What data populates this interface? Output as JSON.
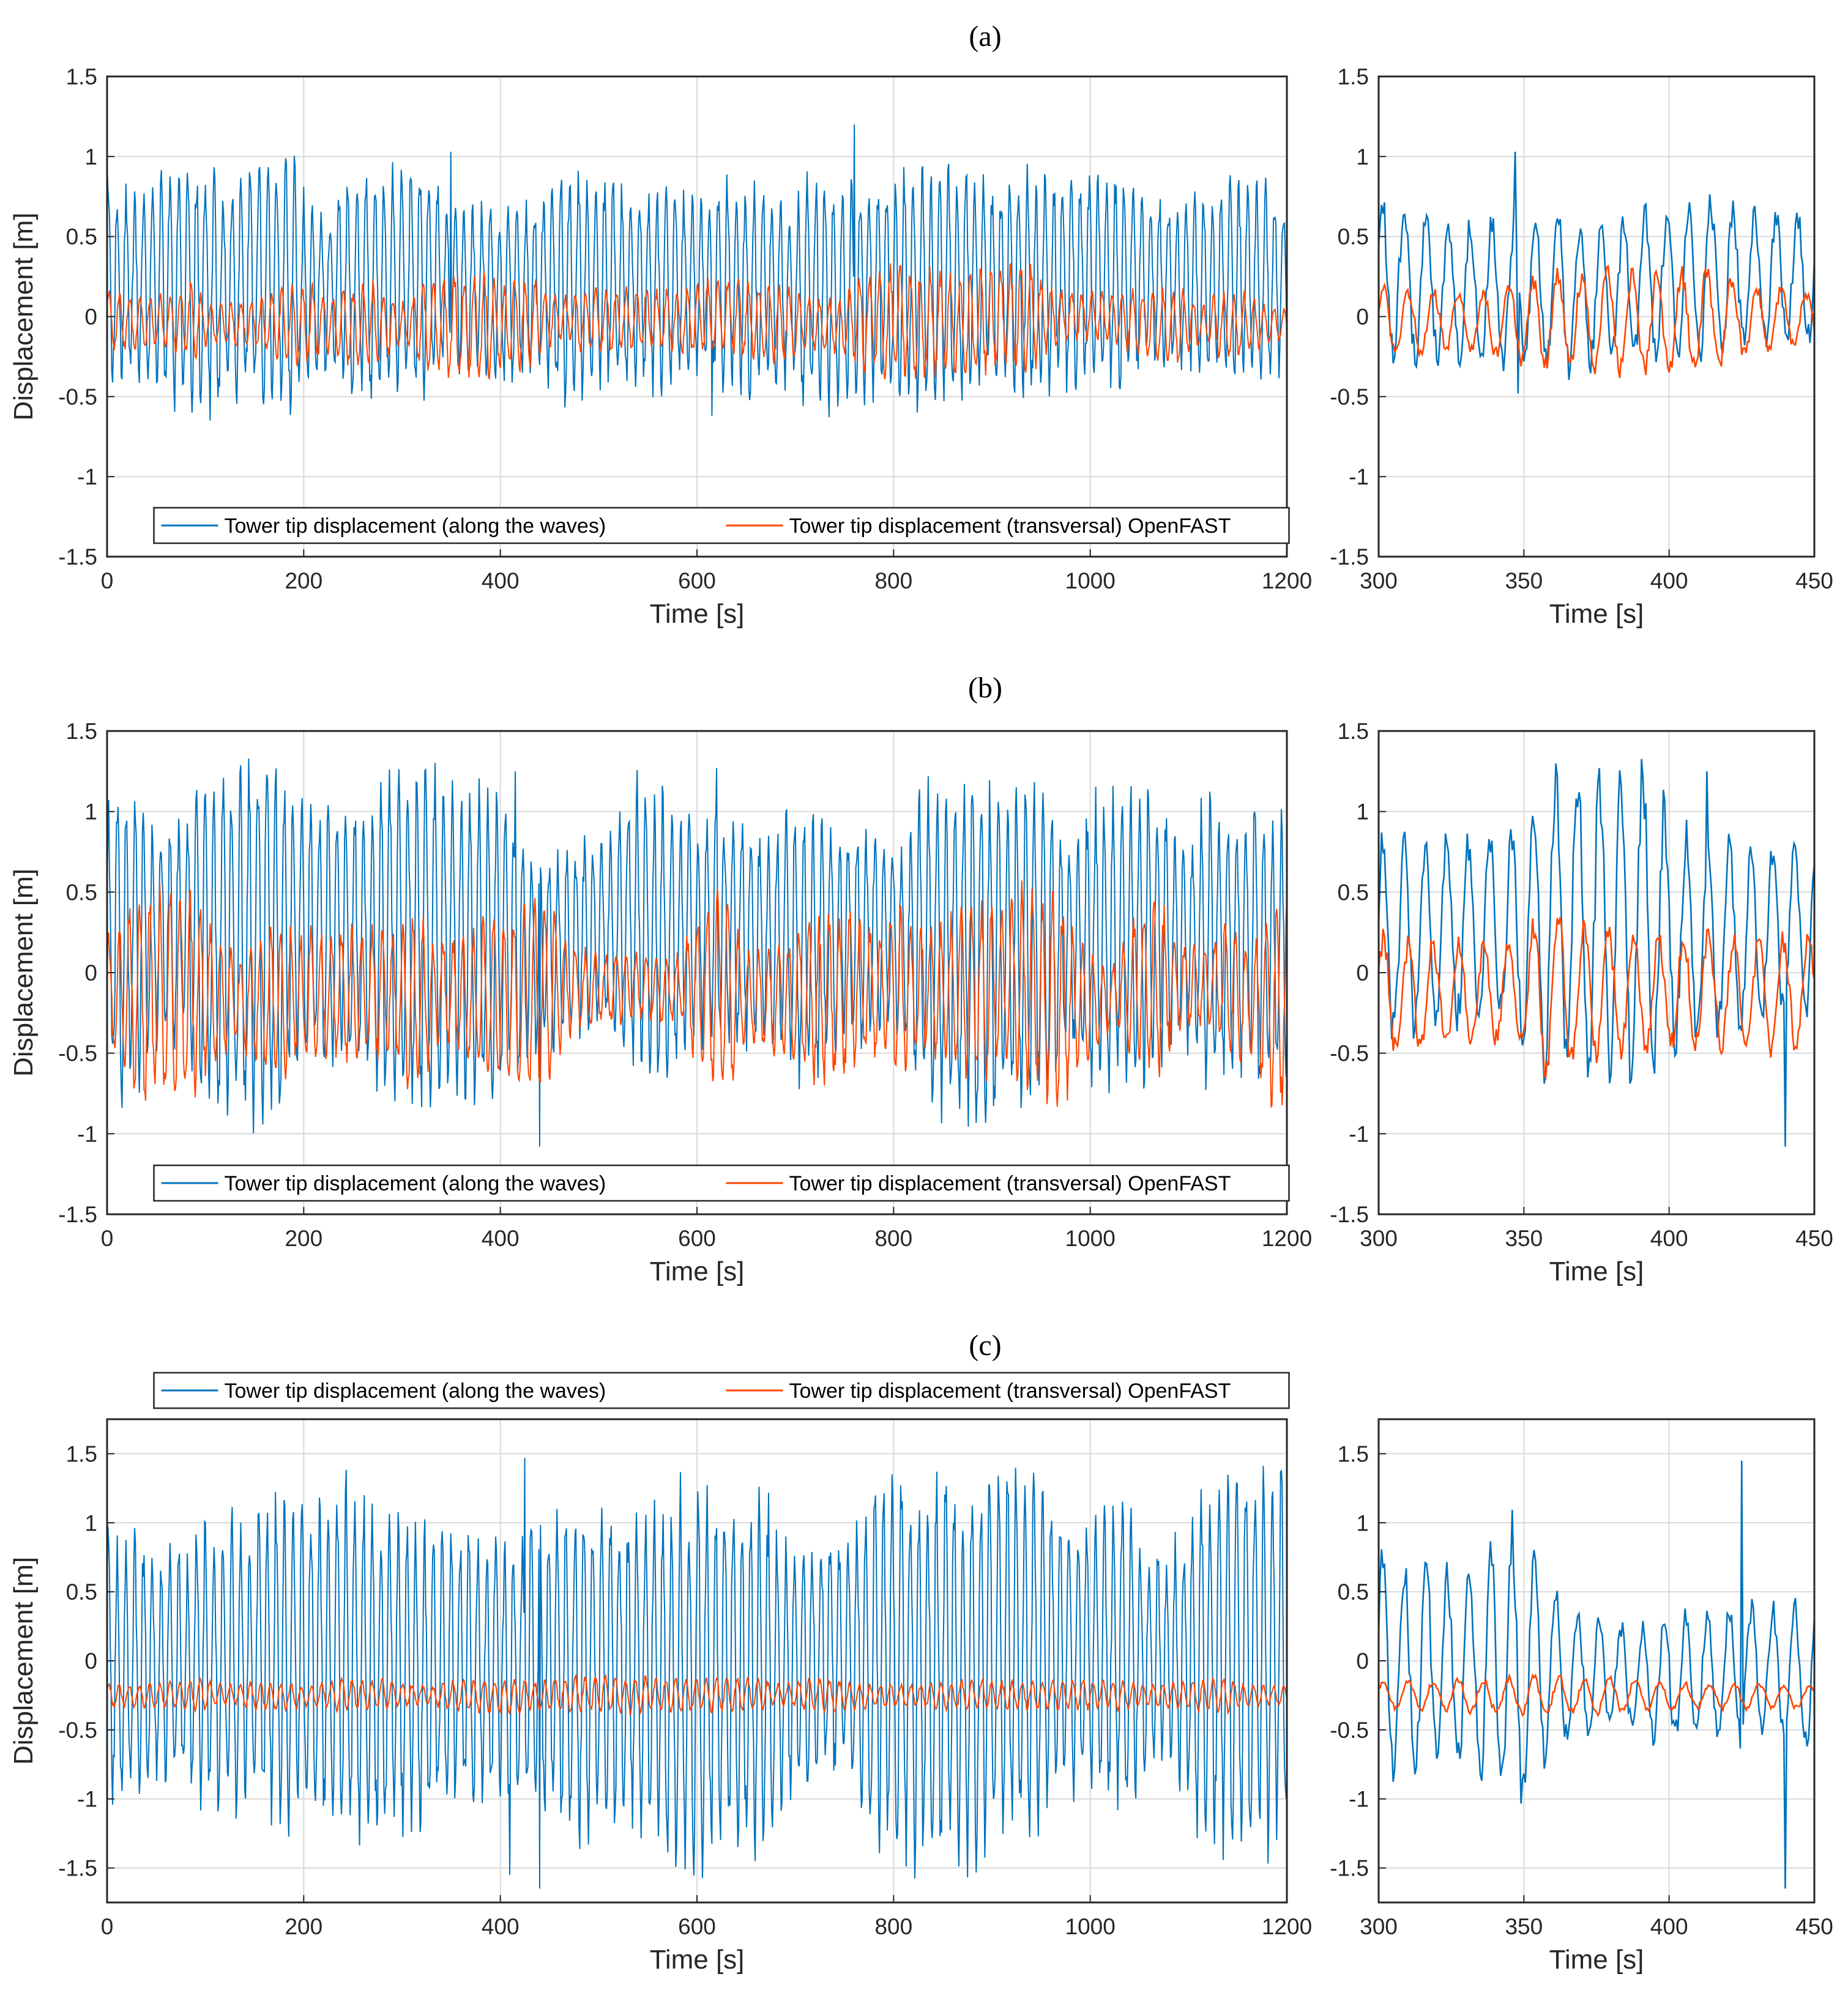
{
  "colors": {
    "along": "#0072BD",
    "transversal": "#FF4500",
    "grid": "#d9d9d9",
    "axis": "#262626"
  },
  "legend": {
    "along": "Tower tip displacement (along the waves)",
    "transversal": "Tower tip displacement (transversal)  OpenFAST"
  },
  "chart_data": [
    {
      "panel": "(a)",
      "label": "a",
      "view": "full",
      "type": "line",
      "xlabel": "Time [s]",
      "ylabel": "Displacement [m]",
      "xlim": [
        0,
        1200
      ],
      "ylim": [
        -1.5,
        1.5
      ],
      "xticks": [
        0,
        200,
        400,
        600,
        800,
        1000,
        1200
      ],
      "yticks": [
        -1.5,
        -1,
        -0.5,
        0,
        0.5,
        1,
        1.5
      ],
      "legend_position": "bottom",
      "series": [
        {
          "name": "Tower tip displacement (along the waves)",
          "mean": 0.2,
          "amp_min": 0.4,
          "amp_max": 0.75,
          "peaks": [
            [
              0,
              0.95
            ],
            [
              350,
              1.03
            ],
            [
              760,
              1.2
            ],
            [
              615,
              -0.62
            ]
          ]
        },
        {
          "name": "Tower tip displacement (transversal) OpenFAST",
          "mean": -0.03,
          "amp_min": 0.08,
          "amp_max": 0.32
        }
      ]
    },
    {
      "panel": "(a)",
      "label": "a",
      "view": "zoom",
      "type": "line",
      "xlabel": "Time [s]",
      "ylabel": "",
      "xlim": [
        300,
        450
      ],
      "ylim": [
        -1.5,
        1.5
      ],
      "xticks": [
        300,
        350,
        400,
        450
      ],
      "yticks": [
        -1.5,
        -1,
        -0.5,
        0,
        0.5,
        1,
        1.5
      ],
      "series": [
        {
          "name": "Tower tip displacement (along the waves)",
          "mean": 0.2,
          "amp_min": 0.3,
          "amp_max": 0.7,
          "peaks": [
            [
              347,
              1.03
            ],
            [
              348,
              -0.48
            ]
          ]
        },
        {
          "name": "Tower tip displacement (transversal) OpenFAST",
          "mean": -0.03,
          "amp_min": 0.1,
          "amp_max": 0.33
        }
      ]
    },
    {
      "panel": "(b)",
      "label": "b",
      "view": "full",
      "type": "line",
      "xlabel": "Time [s]",
      "ylabel": "Displacement [m]",
      "xlim": [
        0,
        1200
      ],
      "ylim": [
        -1.5,
        1.5
      ],
      "xticks": [
        0,
        200,
        400,
        600,
        800,
        1000,
        1200
      ],
      "yticks": [
        -1.5,
        -1,
        -0.5,
        0,
        0.5,
        1,
        1.5
      ],
      "legend_position": "bottom",
      "series": [
        {
          "name": "Tower tip displacement (along the waves)",
          "mean": 0.2,
          "amp_min": 0.5,
          "amp_max": 1.0,
          "peaks": [
            [
              415,
              1.25
            ],
            [
              620,
              1.27
            ],
            [
              440,
              -1.08
            ]
          ]
        },
        {
          "name": "Tower tip displacement (transversal) OpenFAST",
          "mean": -0.15,
          "amp_min": 0.15,
          "amp_max": 0.6
        }
      ]
    },
    {
      "panel": "(b)",
      "label": "b",
      "view": "zoom",
      "type": "line",
      "xlabel": "Time [s]",
      "ylabel": "",
      "xlim": [
        300,
        450
      ],
      "ylim": [
        -1.5,
        1.5
      ],
      "xticks": [
        300,
        350,
        400,
        450
      ],
      "yticks": [
        -1.5,
        -1,
        -0.5,
        0,
        0.5,
        1,
        1.5
      ],
      "series": [
        {
          "name": "Tower tip displacement (along the waves)",
          "mean": 0.2,
          "amp_min": 0.3,
          "amp_max": 1.0,
          "peaks": [
            [
              413,
              1.25
            ],
            [
              440,
              -1.08
            ]
          ]
        },
        {
          "name": "Tower tip displacement (transversal) OpenFAST",
          "mean": -0.15,
          "amp_min": 0.15,
          "amp_max": 0.6
        }
      ]
    },
    {
      "panel": "(c)",
      "label": "c",
      "view": "full",
      "type": "line",
      "xlabel": "Time [s]",
      "ylabel": "Displacement [m]",
      "xlim": [
        0,
        1200
      ],
      "ylim": [
        -1.75,
        1.75
      ],
      "xticks": [
        0,
        200,
        400,
        600,
        800,
        1000,
        1200
      ],
      "yticks": [
        -1.5,
        -1,
        -0.5,
        0,
        0.5,
        1,
        1.5
      ],
      "legend_position": "top-outside",
      "series": [
        {
          "name": "Tower tip displacement (along the waves)",
          "mean": -0.05,
          "amp_min": 0.6,
          "amp_max": 1.3,
          "peaks": [
            [
              425,
              1.47
            ],
            [
              440,
              -1.65
            ],
            [
              410,
              -1.55
            ]
          ]
        },
        {
          "name": "Tower tip displacement (transversal) OpenFAST",
          "mean": -0.25,
          "amp_min": 0.05,
          "amp_max": 0.12
        }
      ]
    },
    {
      "panel": "(c)",
      "label": "c",
      "view": "zoom",
      "type": "line",
      "xlabel": "Time [s]",
      "ylabel": "",
      "xlim": [
        300,
        450
      ],
      "ylim": [
        -1.75,
        1.75
      ],
      "xticks": [
        300,
        350,
        400,
        450
      ],
      "yticks": [
        -1.5,
        -1,
        -0.5,
        0,
        0.5,
        1,
        1.5
      ],
      "series": [
        {
          "name": "Tower tip displacement (along the waves)",
          "mean": -0.05,
          "amp_min": 0.2,
          "amp_max": 1.45,
          "peaks": [
            [
              425,
              1.45
            ],
            [
              440,
              -1.65
            ]
          ]
        },
        {
          "name": "Tower tip displacement (transversal) OpenFAST",
          "mean": -0.25,
          "amp_min": 0.05,
          "amp_max": 0.15
        }
      ]
    }
  ]
}
